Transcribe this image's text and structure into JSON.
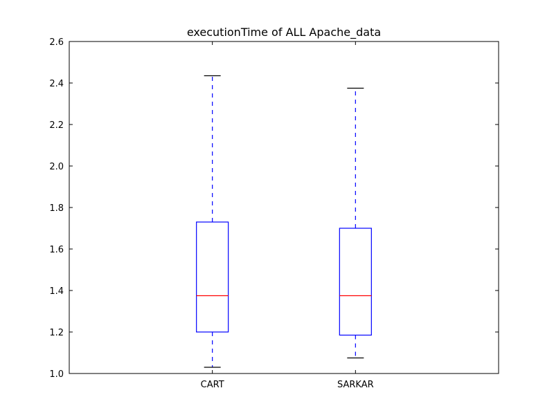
{
  "chart_data": {
    "type": "boxplot",
    "title": "executionTime of ALL Apache_data",
    "xlabel": "",
    "ylabel": "",
    "ylim": [
      1.0,
      2.6
    ],
    "yticks": [
      "1.0",
      "1.2",
      "1.4",
      "1.6",
      "1.8",
      "2.0",
      "2.2",
      "2.4",
      "2.6"
    ],
    "categories": [
      "CART",
      "SARKAR"
    ],
    "boxes": [
      {
        "label": "CART",
        "whisker_low": 1.03,
        "q1": 1.2,
        "median": 1.375,
        "q3": 1.73,
        "whisker_high": 2.435
      },
      {
        "label": "SARKAR",
        "whisker_low": 1.075,
        "q1": 1.185,
        "median": 1.375,
        "q3": 1.7,
        "whisker_high": 2.375
      }
    ],
    "grid": false,
    "colors": {
      "box": "#0000ff",
      "whisker": "#0000ff",
      "median": "#ff0000",
      "cap": "#000000",
      "axes": "#000000"
    }
  }
}
